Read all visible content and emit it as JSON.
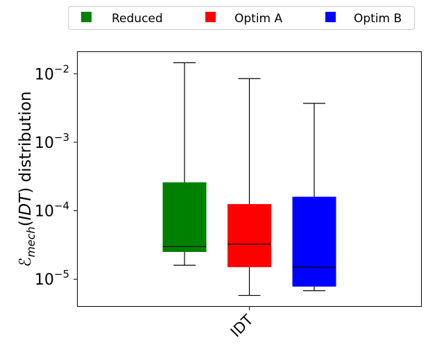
{
  "chart_data": {
    "type": "box",
    "y_scale": "log",
    "ylim": [
      4e-06,
      0.021
    ],
    "ylabel_math": {
      "symbol": "ℰ",
      "subscript": "mech",
      "argument": "IDT",
      "rest": " distribution"
    },
    "yticks": [
      {
        "value": 1e-05,
        "base": "10",
        "exponent": "−5"
      },
      {
        "value": 0.0001,
        "base": "10",
        "exponent": "−4"
      },
      {
        "value": 0.001,
        "base": "10",
        "exponent": "−3"
      },
      {
        "value": 0.01,
        "base": "10",
        "exponent": "−2"
      }
    ],
    "categories": [
      "IDT"
    ],
    "legend_placement": "top-center",
    "grid": false,
    "series": [
      {
        "name": "Reduced",
        "color": "#008000",
        "whisker_low": 1.6e-05,
        "q1": 2.5e-05,
        "median": 3e-05,
        "q3": 0.00026,
        "whisker_high": 0.0145
      },
      {
        "name": "Optim A",
        "color": "#ff0000",
        "whisker_low": 5.8e-06,
        "q1": 1.5e-05,
        "median": 3.25e-05,
        "q3": 0.000125,
        "whisker_high": 0.0085
      },
      {
        "name": "Optim B",
        "color": "#0000ff",
        "whisker_low": 6.8e-06,
        "q1": 7.8e-06,
        "median": 1.5e-05,
        "q3": 0.00016,
        "whisker_high": 0.0037
      }
    ]
  }
}
